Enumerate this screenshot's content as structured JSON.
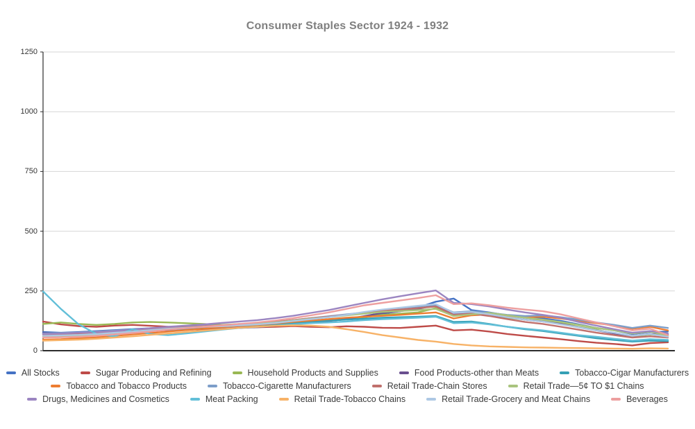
{
  "page": {
    "background": "#ffffff"
  },
  "chart_data": {
    "type": "line",
    "title": "Consumer Staples Sector 1924 - 1932",
    "title_color": "#7f7f7f",
    "xlabel": "",
    "ylabel": "",
    "x_unit": "quarterly values from 1924 through 1932 (no x tick labels shown)",
    "x_start": 1924,
    "x_step": 0.25,
    "ylim": [
      0,
      1250
    ],
    "y_ticks": [
      0,
      250,
      500,
      750,
      1000,
      1250
    ],
    "grid": "horizontal",
    "grid_color": "#d6d6d6",
    "axis_color": "#2b2b2b",
    "legend_position": "bottom",
    "legend_rows": [
      5,
      4,
      5
    ],
    "series": [
      {
        "name": "All Stocks",
        "color": "#4472c4",
        "values": [
          78,
          75,
          78,
          82,
          86,
          90,
          94,
          97,
          98,
          96,
          99,
          102,
          104,
          108,
          114,
          122,
          128,
          134,
          142,
          155,
          165,
          180,
          205,
          218,
          170,
          160,
          148,
          138,
          135,
          125,
          110,
          95,
          85,
          70,
          78,
          80
        ]
      },
      {
        "name": "Sugar Producing and Refining",
        "color": "#be4b48",
        "values": [
          122,
          110,
          103,
          100,
          105,
          108,
          104,
          100,
          98,
          102,
          105,
          100,
          98,
          100,
          103,
          100,
          98,
          102,
          100,
          96,
          95,
          100,
          105,
          85,
          88,
          80,
          70,
          62,
          55,
          48,
          40,
          33,
          28,
          22,
          32,
          35
        ]
      },
      {
        "name": "Household Products and Supplies",
        "color": "#99b854",
        "values": [
          112,
          118,
          112,
          108,
          112,
          118,
          120,
          118,
          115,
          112,
          108,
          112,
          108,
          110,
          115,
          120,
          125,
          132,
          140,
          150,
          155,
          160,
          178,
          150,
          158,
          148,
          138,
          130,
          125,
          115,
          100,
          88,
          72,
          60,
          68,
          62
        ]
      },
      {
        "name": "Food Products-other than Meats",
        "color": "#6a4f8f",
        "values": [
          74,
          72,
          74,
          76,
          78,
          82,
          84,
          86,
          88,
          90,
          92,
          95,
          98,
          104,
          110,
          118,
          124,
          132,
          145,
          158,
          165,
          175,
          190,
          155,
          160,
          150,
          140,
          130,
          122,
          112,
          98,
          85,
          72,
          62,
          70,
          68
        ]
      },
      {
        "name": "Tobacco-Cigar Manufacturers",
        "color": "#35a0b5",
        "values": [
          70,
          68,
          70,
          72,
          75,
          80,
          85,
          88,
          92,
          96,
          100,
          104,
          106,
          110,
          116,
          122,
          126,
          130,
          134,
          138,
          140,
          142,
          145,
          120,
          122,
          112,
          100,
          90,
          82,
          72,
          62,
          52,
          45,
          38,
          42,
          40
        ]
      },
      {
        "name": "Tobacco and Tobacco Products",
        "color": "#ed7d31",
        "values": [
          46,
          48,
          52,
          56,
          62,
          68,
          74,
          80,
          86,
          92,
          98,
          104,
          108,
          114,
          120,
          126,
          132,
          138,
          142,
          146,
          150,
          155,
          160,
          135,
          148,
          152,
          145,
          140,
          142,
          135,
          125,
          115,
          105,
          92,
          100,
          85
        ]
      },
      {
        "name": "Tobacco-Cigarette Manufacturers",
        "color": "#7d9ec9",
        "values": [
          72,
          74,
          76,
          80,
          84,
          88,
          92,
          96,
          100,
          104,
          106,
          110,
          114,
          120,
          128,
          136,
          144,
          152,
          160,
          170,
          178,
          185,
          192,
          160,
          165,
          158,
          150,
          145,
          148,
          140,
          130,
          118,
          108,
          95,
          105,
          95
        ]
      },
      {
        "name": "Retail Trade-Chain Stores",
        "color": "#c0706c",
        "values": [
          68,
          70,
          72,
          75,
          80,
          85,
          90,
          95,
          98,
          102,
          106,
          110,
          114,
          120,
          128,
          136,
          142,
          150,
          158,
          168,
          172,
          178,
          185,
          150,
          155,
          145,
          132,
          120,
          112,
          100,
          88,
          75,
          65,
          55,
          60,
          55
        ]
      },
      {
        "name": "Retail Trade—5¢ TO $1 Chains",
        "color": "#a9c47e",
        "values": [
          60,
          62,
          64,
          68,
          72,
          78,
          84,
          90,
          95,
          100,
          104,
          108,
          112,
          118,
          126,
          134,
          140,
          148,
          155,
          162,
          166,
          170,
          175,
          145,
          152,
          158,
          148,
          138,
          130,
          120,
          108,
          95,
          85,
          72,
          80,
          62
        ]
      },
      {
        "name": "Drugs, Medicines and Cosmetics",
        "color": "#9b85c1",
        "values": [
          70,
          72,
          75,
          78,
          82,
          88,
          94,
          100,
          105,
          110,
          116,
          122,
          128,
          136,
          146,
          158,
          170,
          185,
          200,
          215,
          228,
          240,
          252,
          200,
          195,
          185,
          172,
          160,
          150,
          138,
          120,
          105,
          90,
          75,
          82,
          72
        ]
      },
      {
        "name": "Meat Packing",
        "color": "#62bfd8",
        "values": [
          248,
          175,
          110,
          70,
          60,
          90,
          70,
          65,
          72,
          80,
          88,
          95,
          100,
          105,
          110,
          115,
          118,
          122,
          128,
          132,
          135,
          138,
          142,
          115,
          118,
          110,
          100,
          92,
          85,
          75,
          65,
          58,
          50,
          42,
          48,
          45
        ]
      },
      {
        "name": "Retail Trade-Tobacco Chains",
        "color": "#f7b267",
        "values": [
          42,
          44,
          46,
          50,
          55,
          60,
          66,
          72,
          78,
          84,
          90,
          96,
          100,
          104,
          106,
          105,
          100,
          90,
          78,
          65,
          55,
          45,
          38,
          28,
          22,
          18,
          16,
          14,
          13,
          12,
          11,
          10,
          9,
          8,
          10,
          9
        ]
      },
      {
        "name": "Retail Trade-Grocery and Meat Chains",
        "color": "#adc8e4",
        "values": [
          62,
          64,
          66,
          70,
          75,
          80,
          86,
          92,
          96,
          100,
          102,
          106,
          110,
          116,
          124,
          132,
          140,
          150,
          162,
          172,
          180,
          188,
          195,
          158,
          162,
          152,
          140,
          130,
          122,
          110,
          98,
          85,
          75,
          62,
          70,
          58
        ]
      },
      {
        "name": "Beverages",
        "color": "#ed9f9f",
        "values": [
          55,
          56,
          58,
          62,
          68,
          74,
          80,
          88,
          94,
          100,
          106,
          112,
          118,
          126,
          136,
          148,
          160,
          175,
          190,
          200,
          210,
          220,
          232,
          195,
          198,
          190,
          180,
          172,
          165,
          152,
          135,
          118,
          102,
          85,
          92,
          65
        ]
      }
    ]
  }
}
